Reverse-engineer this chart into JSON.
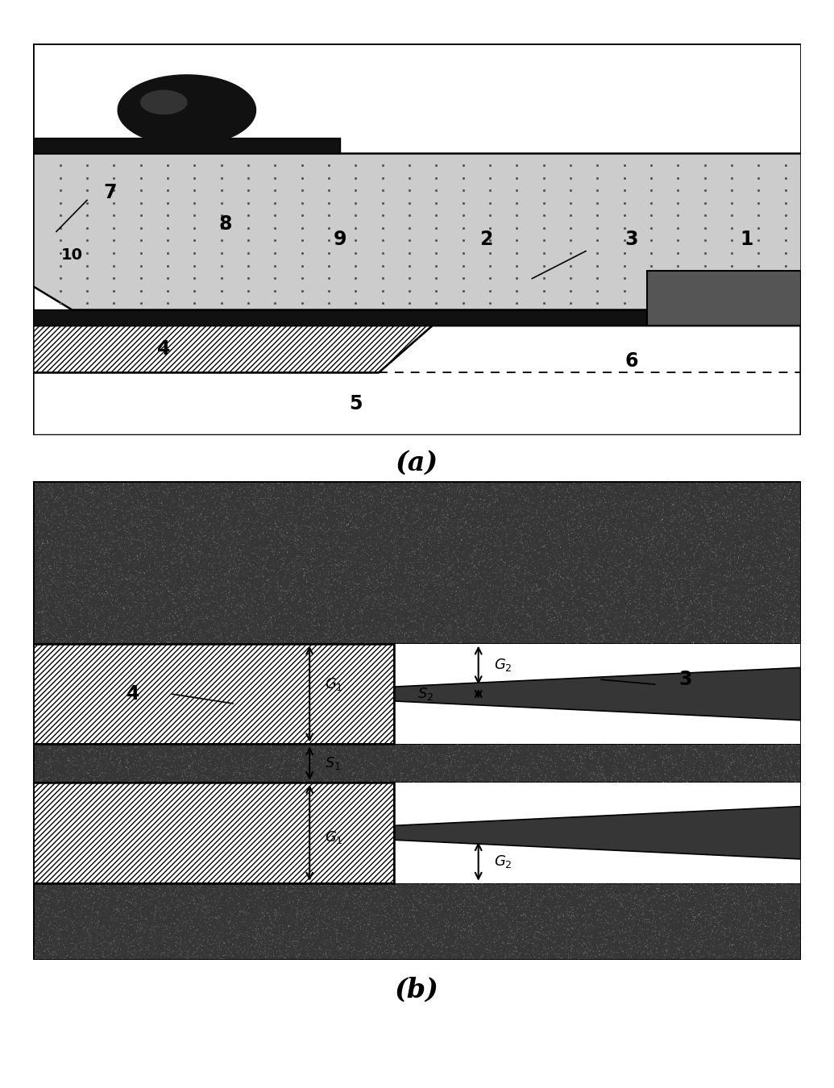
{
  "fig_width": 10.35,
  "fig_height": 13.5,
  "dpi": 100,
  "bg_color": "#ffffff",
  "dark_color": "#1a1a1a",
  "speckle_dark": "#404040",
  "hatch_white": "#ffffff",
  "dotted_gray": "#c8c8c8",
  "label_a": "(a)",
  "label_b": "(b)",
  "label_fontsize": 24,
  "num_fontsize": 17
}
